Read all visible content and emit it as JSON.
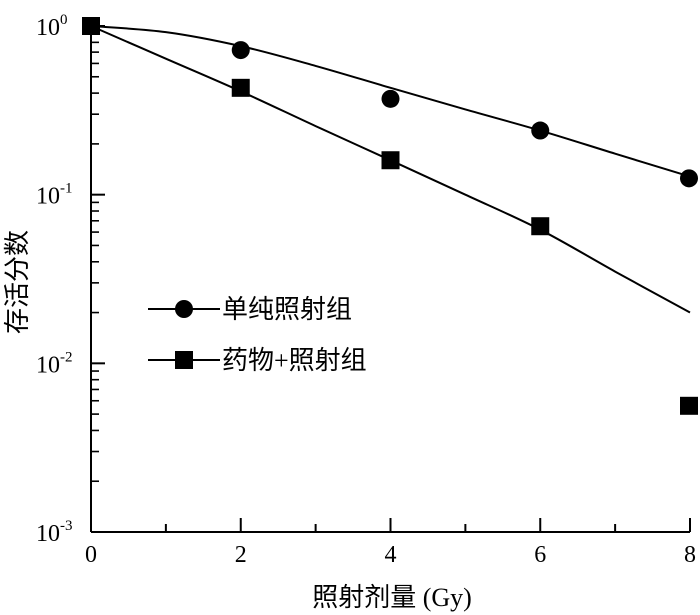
{
  "chart_data": {
    "type": "scatter",
    "xlabel": "照射剂量 (Gy)",
    "ylabel": "存活分数",
    "xlim": [
      0,
      8
    ],
    "ylim": [
      0.001,
      1
    ],
    "y_scale": "log",
    "grid": false,
    "legend_placement": "center-left",
    "x_ticks": [
      {
        "value": 0,
        "label": "0"
      },
      {
        "value": 2,
        "label": "2"
      },
      {
        "value": 4,
        "label": "4"
      },
      {
        "value": 6,
        "label": "6"
      },
      {
        "value": 8,
        "label": "8"
      }
    ],
    "y_ticks": [
      {
        "value": 1,
        "base": "10",
        "exp": "0"
      },
      {
        "value": 0.1,
        "base": "10",
        "exp": "-1"
      },
      {
        "value": 0.01,
        "base": "10",
        "exp": "-2"
      },
      {
        "value": 0.001,
        "base": "10",
        "exp": "-3"
      }
    ],
    "series": [
      {
        "name": "单纯照射组",
        "marker": "circle",
        "x": [
          0,
          2,
          4,
          6,
          8
        ],
        "y": [
          1.0,
          0.72,
          0.37,
          0.24,
          0.125
        ],
        "fit_x": [
          0,
          1,
          2,
          3,
          4,
          5,
          6,
          7,
          8
        ],
        "fit_y": [
          1.0,
          0.92,
          0.76,
          0.58,
          0.43,
          0.32,
          0.24,
          0.175,
          0.128
        ]
      },
      {
        "name": "药物+照射组",
        "marker": "square",
        "x": [
          0,
          2,
          4,
          6,
          8
        ],
        "y": [
          1.0,
          0.43,
          0.16,
          0.065,
          0.0056
        ],
        "fit_x": [
          0,
          1,
          2,
          3,
          4,
          5,
          6,
          7,
          8
        ],
        "fit_y": [
          1.0,
          0.64,
          0.41,
          0.255,
          0.16,
          0.1,
          0.062,
          0.035,
          0.02
        ]
      }
    ]
  }
}
